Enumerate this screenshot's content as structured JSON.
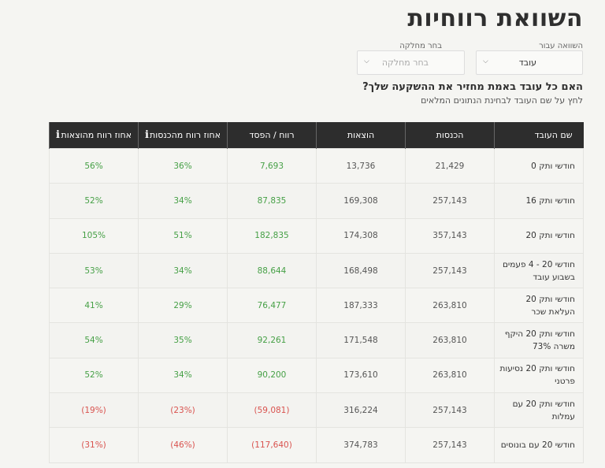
{
  "page_title": "השוואת רווחיות",
  "filters": {
    "compare_label": "השוואה עבור",
    "compare_value": "עובד",
    "department_label": "בחר מחלקה",
    "department_placeholder": "בחר מחלקה"
  },
  "question": "האם כל עובד באמת מחזיר את ההשקעה שלך?",
  "hint": "לחץ על שם העובד לבחינת הנתונים המלאים",
  "table": {
    "headers": {
      "name": "שם העובד",
      "income": "הכנסות",
      "expenses": "הוצאות",
      "profit": "רווח / הפסד",
      "pct_income": "אחוז רווח מהכנסות",
      "pct_expenses": "אחוז רווח מהוצאות"
    },
    "rows": [
      {
        "name": "חודשי ותק 0",
        "income": "21,429",
        "expenses": "13,736",
        "profit": "7,693",
        "pct_income": "36%",
        "pct_expenses": "56%"
      },
      {
        "name": "חודשי ותק 16",
        "income": "257,143",
        "expenses": "169,308",
        "profit": "87,835",
        "pct_income": "34%",
        "pct_expenses": "52%"
      },
      {
        "name": "חודשי ותק 20",
        "income": "357,143",
        "expenses": "174,308",
        "profit": "182,835",
        "pct_income": "51%",
        "pct_expenses": "105%"
      },
      {
        "name": "חודשי 20 - 4 פעמים בשבוע עובד",
        "income": "257,143",
        "expenses": "168,498",
        "profit": "88,644",
        "pct_income": "34%",
        "pct_expenses": "53%"
      },
      {
        "name": "חודשי ותק 20 העלאת שכר",
        "income": "263,810",
        "expenses": "187,333",
        "profit": "76,477",
        "pct_income": "29%",
        "pct_expenses": "41%"
      },
      {
        "name": "חודשי ותק 20 היקף משרה 73%",
        "income": "263,810",
        "expenses": "171,548",
        "profit": "92,261",
        "pct_income": "35%",
        "pct_expenses": "54%"
      },
      {
        "name": "חודשי ותק 20 נסיעות פרטני",
        "income": "263,810",
        "expenses": "173,610",
        "profit": "90,200",
        "pct_income": "34%",
        "pct_expenses": "52%"
      },
      {
        "name": "חודשי ותק 20 עם עמלות",
        "income": "257,143",
        "expenses": "316,224",
        "profit": "(59,081)",
        "pct_income": "(23%)",
        "pct_expenses": "(19%)"
      },
      {
        "name": "חודשי 20 עם בונוסים",
        "income": "257,143",
        "expenses": "374,783",
        "profit": "(117,640)",
        "pct_income": "(46%)",
        "pct_expenses": "(31%)"
      }
    ]
  },
  "colors": {
    "positive": "#46a046",
    "negative": "#d9534f",
    "header_bg": "#2d2d2d"
  }
}
